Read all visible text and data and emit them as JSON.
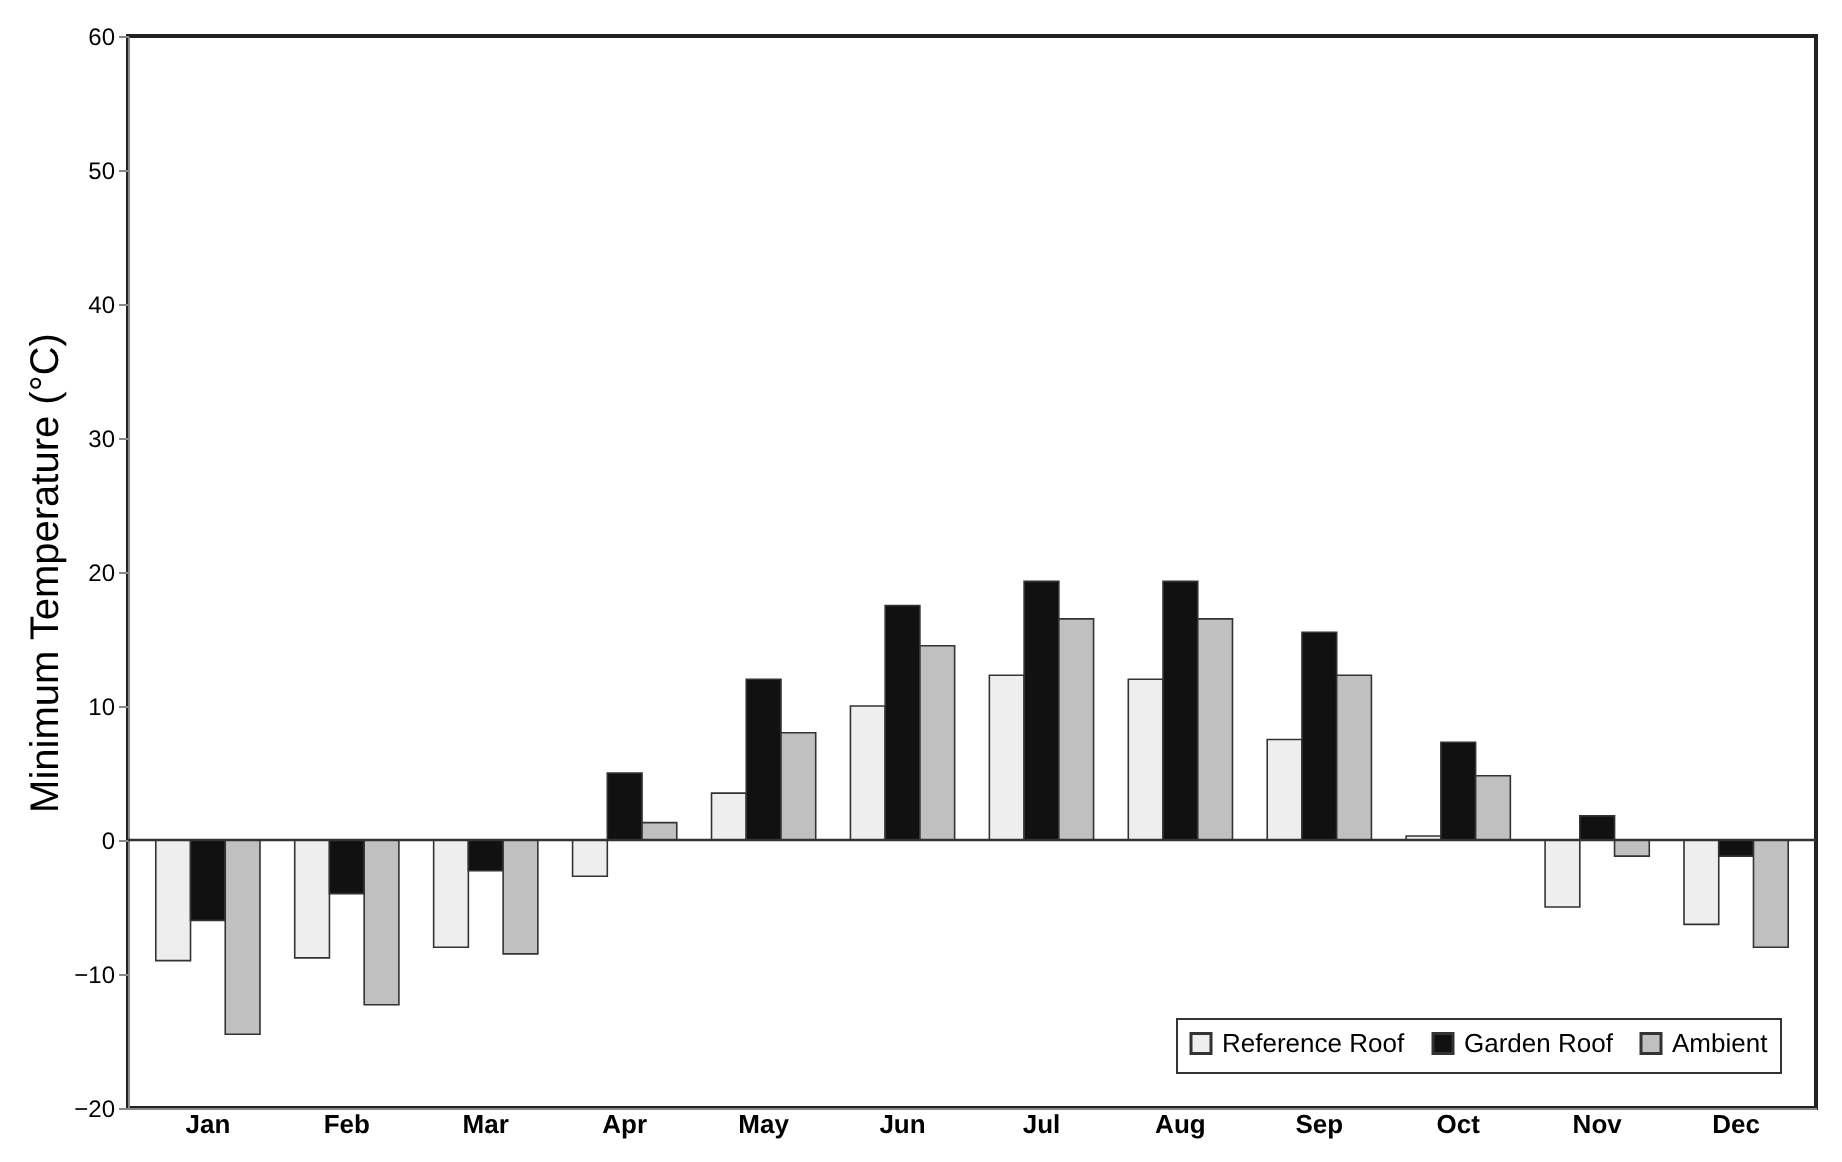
{
  "chart_data": {
    "type": "bar",
    "ylabel": "Minimum Temperature (°C)",
    "categories": [
      "Jan",
      "Feb",
      "Mar",
      "Apr",
      "May",
      "Jun",
      "Jul",
      "Aug",
      "Sep",
      "Oct",
      "Nov",
      "Dec"
    ],
    "series": [
      {
        "name": "Reference Roof",
        "color": "#eeeeee",
        "values": [
          -9,
          -8.8,
          -8,
          -2.7,
          3.5,
          10,
          12.3,
          12,
          7.5,
          0.3,
          -5,
          -6.3
        ]
      },
      {
        "name": "Garden Roof",
        "color": "#111111",
        "values": [
          -6,
          -4,
          -2.3,
          5,
          12,
          17.5,
          19.3,
          19.3,
          15.5,
          7.3,
          1.8,
          -1.2
        ]
      },
      {
        "name": "Ambient",
        "color": "#c0c0c0",
        "values": [
          -14.5,
          -12.3,
          -8.5,
          1.3,
          8,
          14.5,
          16.5,
          16.5,
          12.3,
          4.8,
          -1.2,
          -8
        ]
      }
    ],
    "ylim": [
      -20,
      60
    ],
    "yticks": [
      -20,
      -10,
      0,
      10,
      20,
      30,
      40,
      50,
      60
    ],
    "ref_lines": [
      {
        "axis": "y",
        "value": 0,
        "color": "#333333"
      }
    ],
    "grid": false,
    "legend": "bottom right"
  }
}
